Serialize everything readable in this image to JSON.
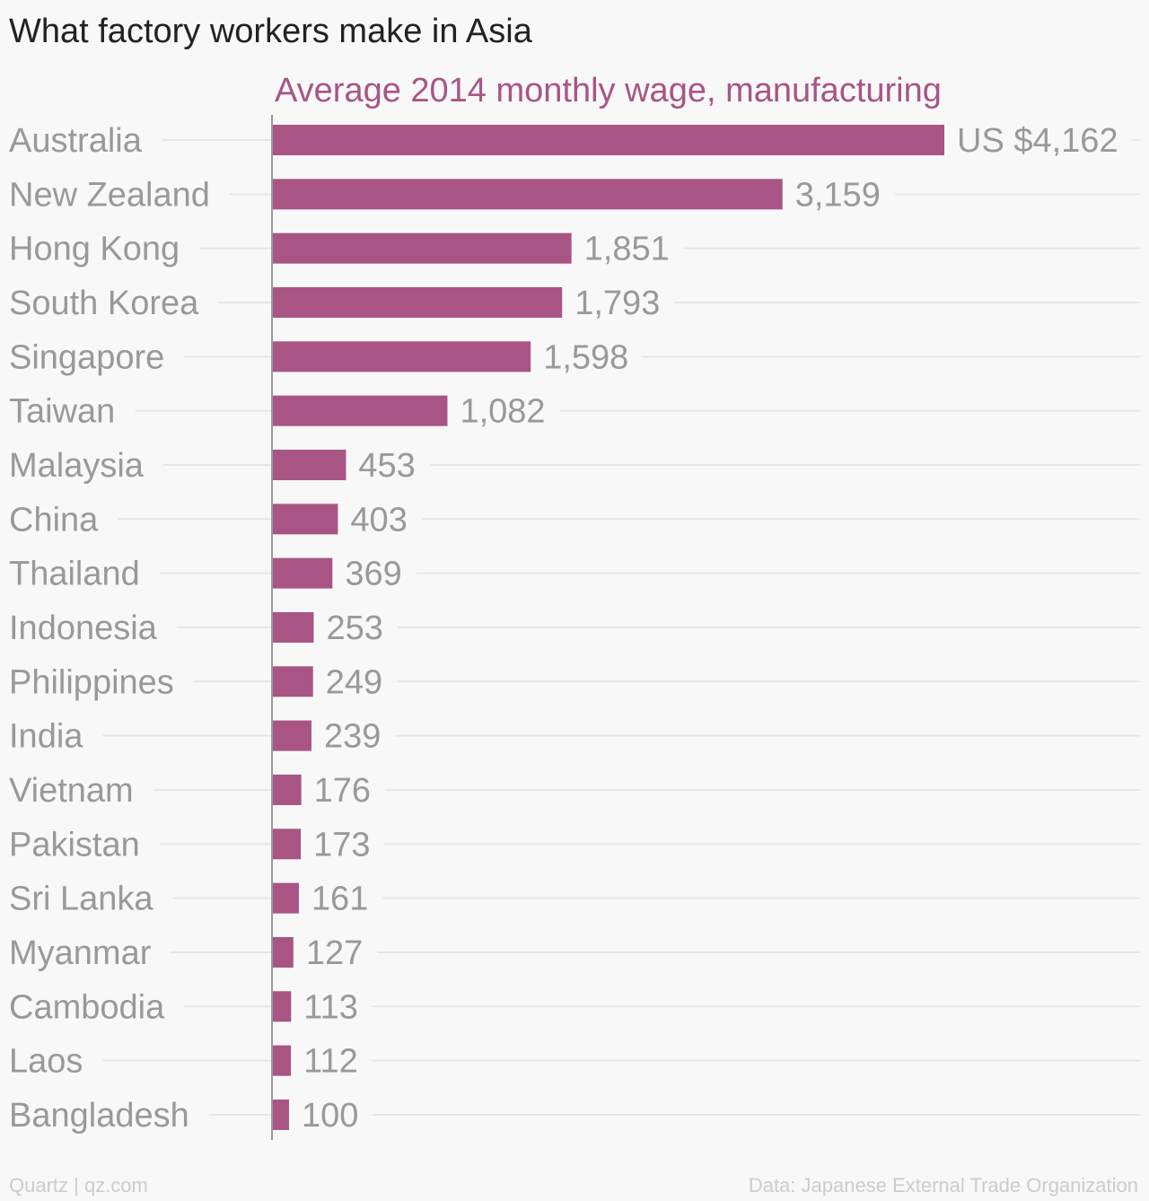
{
  "title": "What factory workers make in Asia",
  "footer": {
    "left": "Quartz | qz.com",
    "right": "Data: Japanese External Trade Organization"
  },
  "colors": {
    "bar": "#a85585",
    "subtitle": "#a85585",
    "label": "#999999",
    "value": "#999999",
    "grid": "#e6e6e6",
    "axis": "#999999",
    "background": "#f8f8f8"
  },
  "chart_data": {
    "type": "bar",
    "orientation": "horizontal",
    "subtitle": "Average 2014 monthly wage, manufacturing",
    "categories": [
      "Australia",
      "New Zealand",
      "Hong Kong",
      "South Korea",
      "Singapore",
      "Taiwan",
      "Malaysia",
      "China",
      "Thailand",
      "Indonesia",
      "Philippines",
      "India",
      "Vietnam",
      "Pakistan",
      "Sri Lanka",
      "Myanmar",
      "Cambodia",
      "Laos",
      "Bangladesh"
    ],
    "values": [
      4162,
      3159,
      1851,
      1793,
      1598,
      1082,
      453,
      403,
      369,
      253,
      249,
      239,
      176,
      173,
      161,
      127,
      113,
      112,
      100
    ],
    "value_labels": [
      "US $4,162",
      "3,159",
      "1,851",
      "1,793",
      "1,598",
      "1,082",
      "453",
      "403",
      "369",
      "253",
      "249",
      "239",
      "176",
      "173",
      "161",
      "127",
      "113",
      "112",
      "100"
    ],
    "xlim": [
      0,
      4162
    ],
    "grid": true
  }
}
